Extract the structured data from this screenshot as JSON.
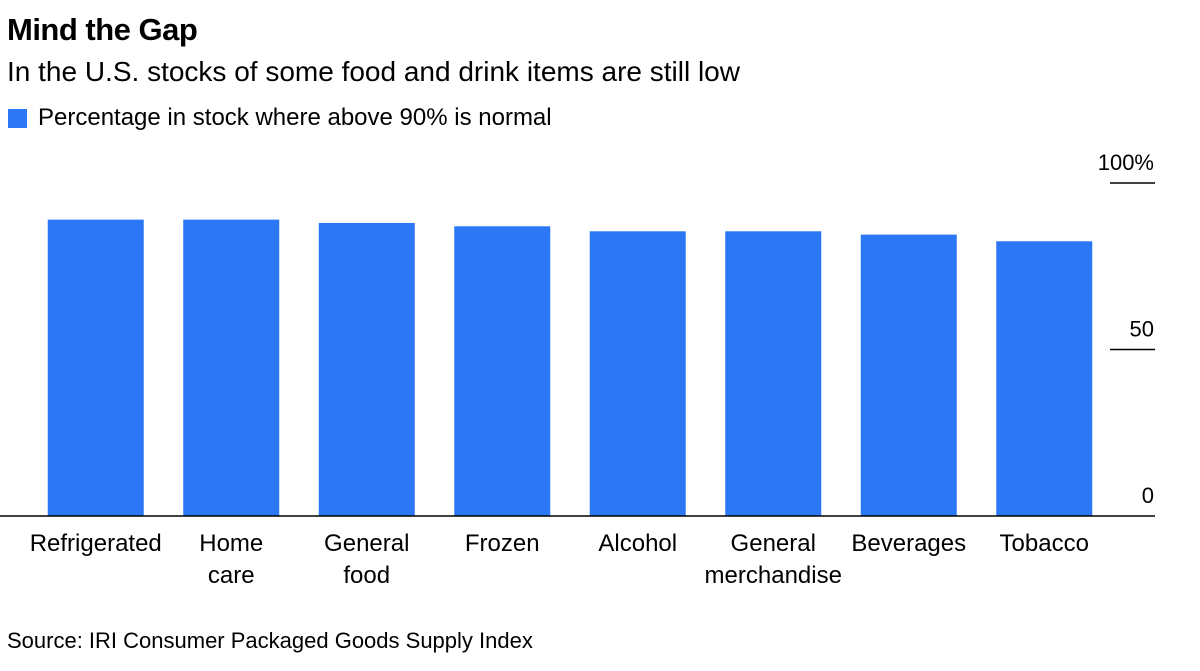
{
  "title": "Mind the Gap",
  "subtitle": "In the U.S. stocks of some food and drink items are still low",
  "legend_label": "Percentage in stock where above 90% is normal",
  "source": "Source: IRI Consumer Packaged Goods Supply Index",
  "colors": {
    "bar": "#2b77f5",
    "axis": "#000000",
    "text": "#000000"
  },
  "chart_data": {
    "type": "bar",
    "categories": [
      "Refrigerated",
      "Home care",
      "General food",
      "Frozen",
      "Alcohol",
      "General merchandise",
      "Beverages",
      "Tobacco"
    ],
    "category_lines": [
      [
        "Refrigerated"
      ],
      [
        "Home",
        "care"
      ],
      [
        "General",
        "food"
      ],
      [
        "Frozen"
      ],
      [
        "Alcohol"
      ],
      [
        "General",
        "merchandise"
      ],
      [
        "Beverages"
      ],
      [
        "Tobacco"
      ]
    ],
    "series": [
      {
        "name": "Percentage in stock where above 90% is normal",
        "values": [
          89,
          89,
          88,
          87,
          85.5,
          85.5,
          84.5,
          82.5
        ]
      }
    ],
    "ylim": [
      0,
      100
    ],
    "yticks": [
      0,
      50,
      100
    ],
    "ytick_labels": [
      "0",
      "50",
      "100%"
    ],
    "legend_position": "top-left",
    "grid": false
  }
}
